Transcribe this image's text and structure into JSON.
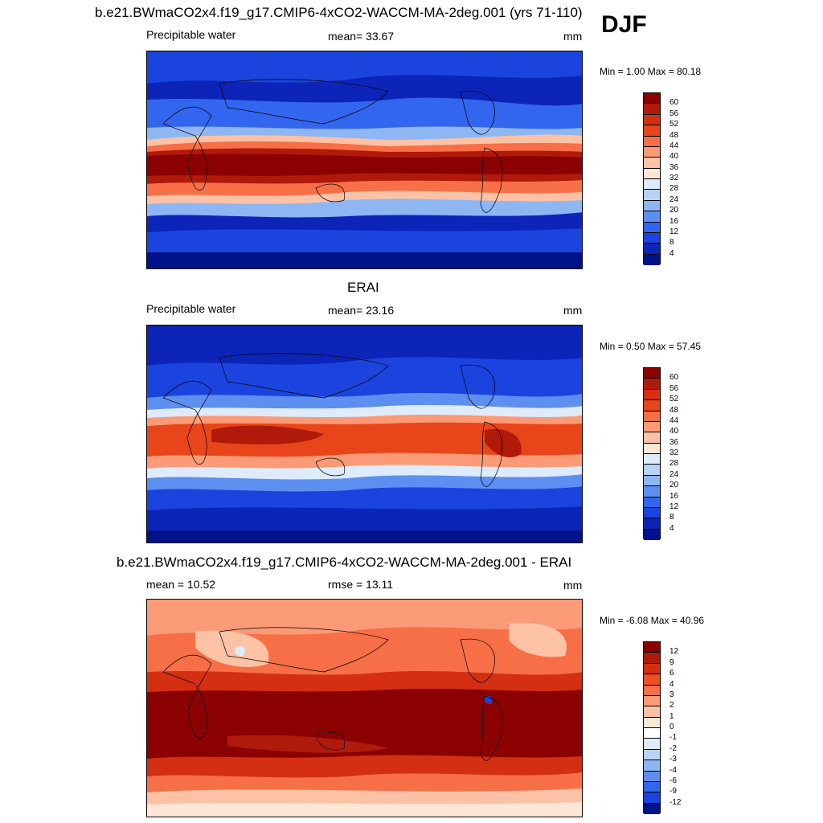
{
  "season": "DJF",
  "panels": [
    {
      "title": "b.e21.BWmaCO2x4.f19_g17.CMIP6-4xCO2-WACCM-MA-2deg.001 (yrs 71-110)",
      "left_label": "Precipitable water",
      "center_label": "mean=  33.67",
      "units": "mm",
      "minmax": "Min =   1.00 Max =  80.18",
      "mean": 33.67,
      "min": 1.0,
      "max": 80.18,
      "colorbar_labels": [
        "60",
        "56",
        "52",
        "48",
        "44",
        "40",
        "36",
        "32",
        "28",
        "24",
        "20",
        "16",
        "12",
        "8",
        "4"
      ]
    },
    {
      "title": "ERAI",
      "left_label": "Precipitable water",
      "center_label": "mean=  23.16",
      "units": "mm",
      "minmax": "Min =   0.50 Max =  57.45",
      "mean": 23.16,
      "min": 0.5,
      "max": 57.45,
      "colorbar_labels": [
        "60",
        "56",
        "52",
        "48",
        "44",
        "40",
        "36",
        "32",
        "28",
        "24",
        "20",
        "16",
        "12",
        "8",
        "4"
      ]
    },
    {
      "title": "b.e21.BWmaCO2x4.f19_g17.CMIP6-4xCO2-WACCM-MA-2deg.001 - ERAI",
      "left_label": "mean =  10.52",
      "center_label": "rmse =  13.11",
      "units": "mm",
      "minmax": "Min =  -6.08 Max =  40.96",
      "mean": 10.52,
      "rmse": 13.11,
      "min": -6.08,
      "max": 40.96,
      "colorbar_labels": [
        "12",
        "9",
        "6",
        "4",
        "3",
        "2",
        "1",
        "0",
        "-1",
        "-2",
        "-3",
        "-4",
        "-6",
        "-9",
        "-12"
      ]
    }
  ],
  "colors": {
    "abs_scale": [
      "#8b0000",
      "#b01a0a",
      "#d32f10",
      "#e8461a",
      "#f76f47",
      "#fb9a76",
      "#fcc2a6",
      "#fde6d6",
      "#ddebfb",
      "#b8d3f7",
      "#8db6f2",
      "#5d8ff0",
      "#3366ee",
      "#1a44dd",
      "#0c25b8",
      "#00128a"
    ],
    "diff_scale": [
      "#8b0000",
      "#b01a0a",
      "#d32f10",
      "#ee4f22",
      "#f76f47",
      "#fb9a76",
      "#fcc2a6",
      "#fde6d6",
      "#ffffff",
      "#ddebfb",
      "#b8d3f7",
      "#8db6f2",
      "#5d8ff0",
      "#3366ee",
      "#1a44dd",
      "#00128a"
    ]
  }
}
